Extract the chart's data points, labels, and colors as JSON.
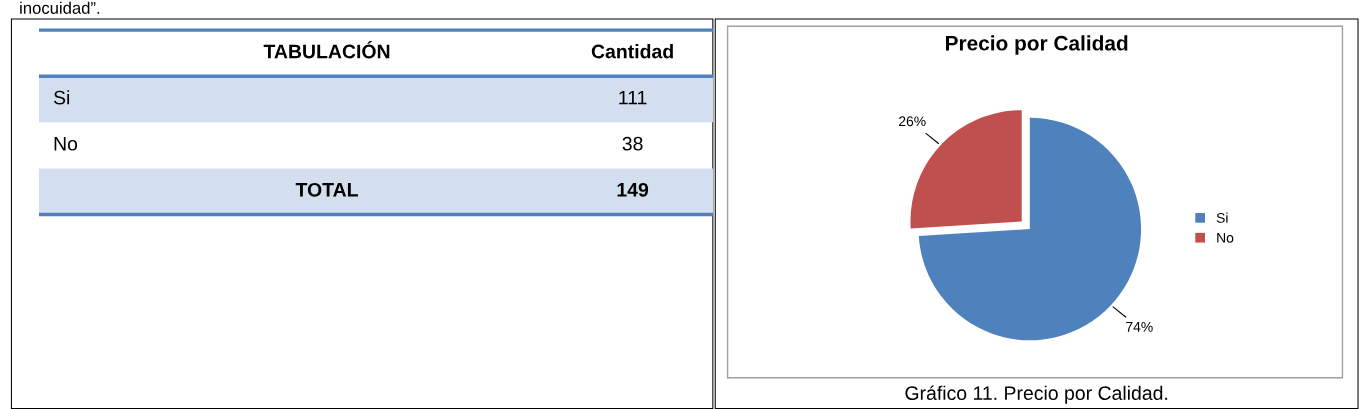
{
  "chart_data": [
    {
      "type": "other",
      "annotations": [
        "inocuidad”.",
        "TABULACIÓN",
        "Cantidad",
        "Si",
        "111",
        "No",
        "38",
        "TOTAL",
        "149"
      ]
    },
    {
      "type": "pie",
      "title": "Precio por Calidad",
      "categories": [
        "Si",
        "No"
      ],
      "values": [
        74,
        26
      ],
      "colors": [
        "#4f81bd",
        "#c0504d"
      ],
      "value_labels": [
        "74%",
        "26%"
      ],
      "legend": "right",
      "annotations": [
        "Gráfico 11. Precio por Calidad."
      ]
    }
  ]
}
